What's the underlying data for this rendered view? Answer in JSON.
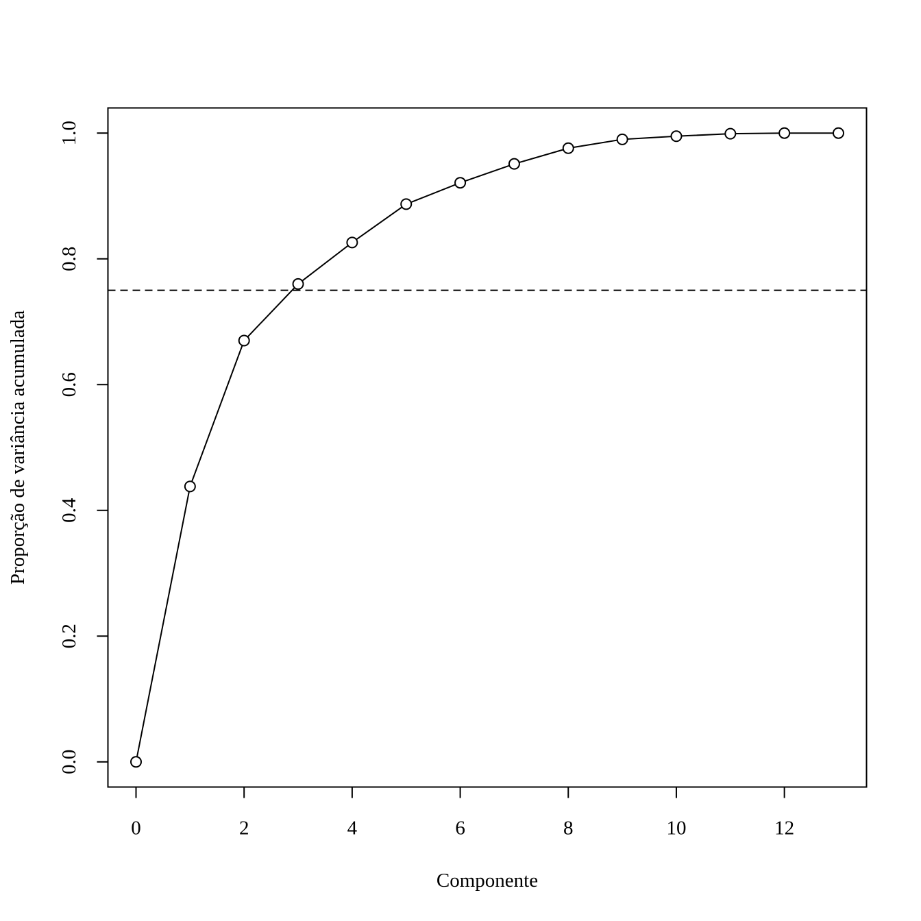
{
  "chart_data": {
    "type": "line",
    "title": "",
    "xlabel": "Componente",
    "ylabel": "Proporção de variância acumulada",
    "xlim": [
      -0.52,
      13.52
    ],
    "ylim": [
      -0.04,
      1.04
    ],
    "x_ticks": [
      {
        "value": 0,
        "label": "0"
      },
      {
        "value": 2,
        "label": "2"
      },
      {
        "value": 4,
        "label": "4"
      },
      {
        "value": 6,
        "label": "6"
      },
      {
        "value": 8,
        "label": "8"
      },
      {
        "value": 10,
        "label": "10"
      },
      {
        "value": 12,
        "label": "12"
      }
    ],
    "y_ticks": [
      {
        "value": 0.0,
        "label": "0.0"
      },
      {
        "value": 0.2,
        "label": "0.2"
      },
      {
        "value": 0.4,
        "label": "0.4"
      },
      {
        "value": 0.6,
        "label": "0.6"
      },
      {
        "value": 0.8,
        "label": "0.8"
      },
      {
        "value": 1.0,
        "label": "1.0"
      }
    ],
    "series": [
      {
        "marker": "open-circle",
        "x": [
          0,
          1,
          2,
          3,
          4,
          5,
          6,
          7,
          8,
          9,
          10,
          11,
          12,
          13
        ],
        "values": [
          0.0,
          0.438,
          0.67,
          0.76,
          0.826,
          0.887,
          0.921,
          0.951,
          0.976,
          0.99,
          0.995,
          0.999,
          1.0,
          1.0
        ]
      }
    ],
    "reference_line": {
      "orientation": "horizontal",
      "value": 0.75,
      "style": "dashed"
    },
    "grid": false,
    "legend": "none",
    "colors": {
      "line": "#000000",
      "axis": "#000000",
      "background": "#ffffff"
    }
  }
}
